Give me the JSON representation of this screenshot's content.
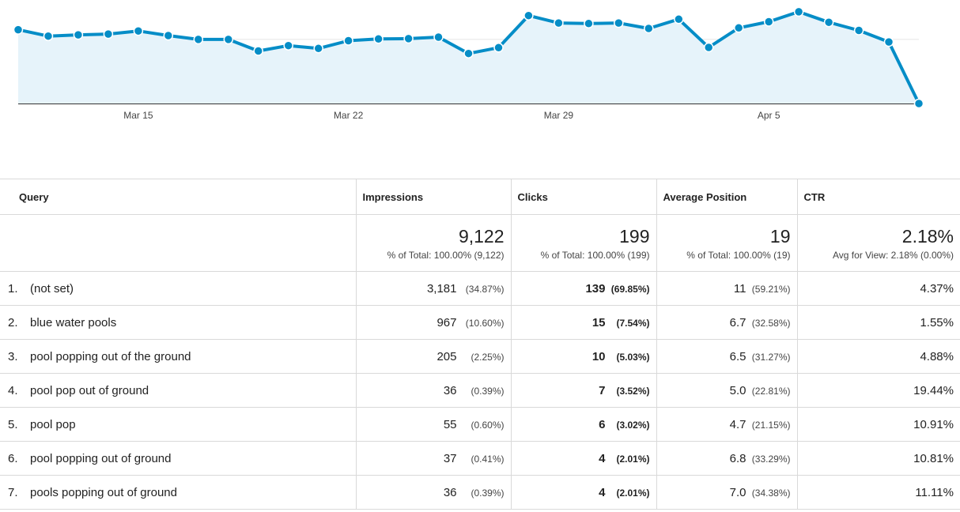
{
  "chart_data": {
    "type": "area",
    "ytick_labels": [
      "250"
    ],
    "ytick_values": [
      250
    ],
    "ylim": [
      0,
      580
    ],
    "xtick_labels": [
      "Mar 15",
      "Mar 22",
      "Mar 29",
      "Apr 5"
    ],
    "xtick_indices": [
      4,
      11,
      18,
      25
    ],
    "values": [
      288,
      263,
      268,
      271,
      283,
      265,
      250,
      250,
      205,
      226,
      215,
      245,
      252,
      253,
      259,
      195,
      218,
      343,
      314,
      312,
      314,
      293,
      329,
      219,
      295,
      319,
      358,
      317,
      285,
      240,
      0
    ],
    "line_color": "#058dc7",
    "fill_color": "#e6f3fa",
    "grid": true
  },
  "table": {
    "headers": {
      "query": "Query",
      "impressions": "Impressions",
      "clicks": "Clicks",
      "position": "Average Position",
      "ctr": "CTR"
    },
    "totals": {
      "impressions": "9,122",
      "impressions_sub": "% of Total: 100.00% (9,122)",
      "clicks": "199",
      "clicks_sub": "% of Total: 100.00% (199)",
      "position": "19",
      "position_sub": "% of Total: 100.00% (19)",
      "ctr": "2.18%",
      "ctr_sub": "Avg for View: 2.18% (0.00%)"
    },
    "rows": [
      {
        "rank": "1.",
        "query": "(not set)",
        "impressions": "3,181",
        "impressions_pct": "(34.87%)",
        "clicks": "139",
        "clicks_pct": "(69.85%)",
        "position": "11",
        "position_pct": "(59.21%)",
        "ctr": "4.37%"
      },
      {
        "rank": "2.",
        "query": "blue water pools",
        "impressions": "967",
        "impressions_pct": "(10.60%)",
        "clicks": "15",
        "clicks_pct": "(7.54%)",
        "position": "6.7",
        "position_pct": "(32.58%)",
        "ctr": "1.55%"
      },
      {
        "rank": "3.",
        "query": "pool popping out of the ground",
        "impressions": "205",
        "impressions_pct": "(2.25%)",
        "clicks": "10",
        "clicks_pct": "(5.03%)",
        "position": "6.5",
        "position_pct": "(31.27%)",
        "ctr": "4.88%"
      },
      {
        "rank": "4.",
        "query": "pool pop out of ground",
        "impressions": "36",
        "impressions_pct": "(0.39%)",
        "clicks": "7",
        "clicks_pct": "(3.52%)",
        "position": "5.0",
        "position_pct": "(22.81%)",
        "ctr": "19.44%"
      },
      {
        "rank": "5.",
        "query": "pool pop",
        "impressions": "55",
        "impressions_pct": "(0.60%)",
        "clicks": "6",
        "clicks_pct": "(3.02%)",
        "position": "4.7",
        "position_pct": "(21.15%)",
        "ctr": "10.91%"
      },
      {
        "rank": "6.",
        "query": "pool popping out of ground",
        "impressions": "37",
        "impressions_pct": "(0.41%)",
        "clicks": "4",
        "clicks_pct": "(2.01%)",
        "position": "6.8",
        "position_pct": "(33.29%)",
        "ctr": "10.81%"
      },
      {
        "rank": "7.",
        "query": "pools popping out of ground",
        "impressions": "36",
        "impressions_pct": "(0.39%)",
        "clicks": "4",
        "clicks_pct": "(2.01%)",
        "position": "7.0",
        "position_pct": "(34.38%)",
        "ctr": "11.11%"
      }
    ]
  }
}
